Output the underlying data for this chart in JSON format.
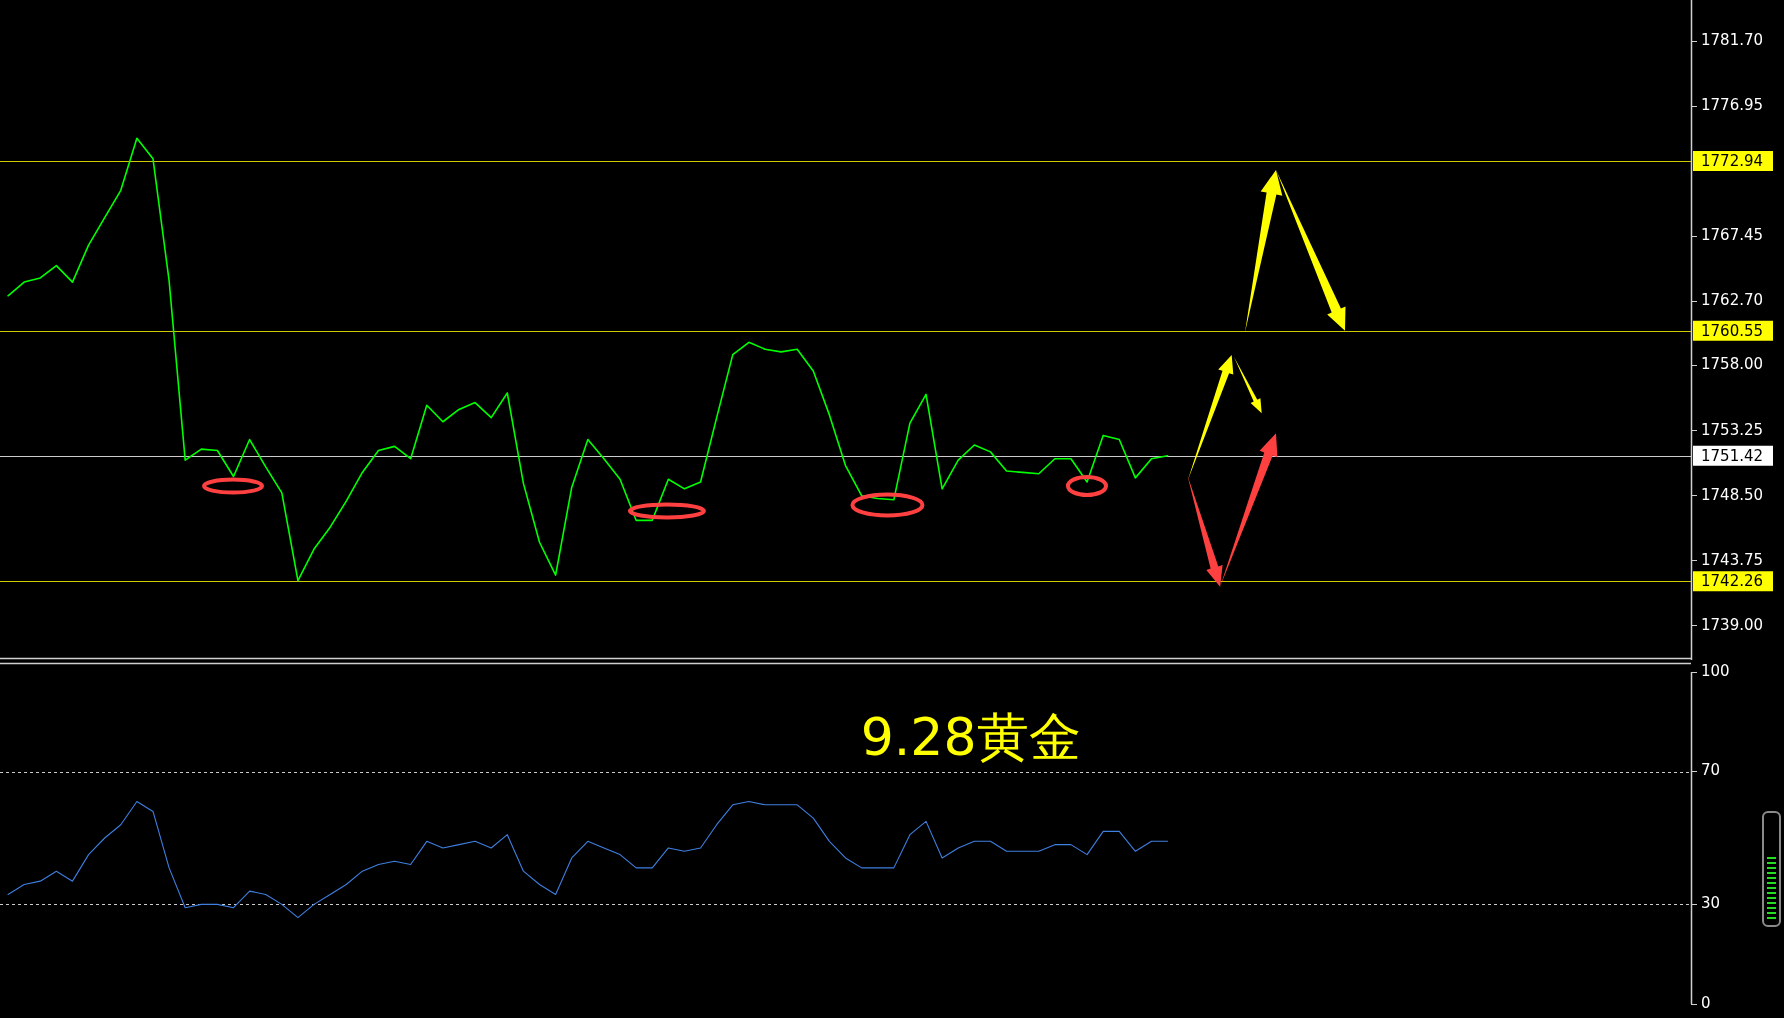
{
  "chart_data": [
    {
      "type": "line",
      "categories": [
        null,
        null,
        null,
        null,
        null,
        null,
        null,
        null,
        null,
        null,
        null,
        null,
        null,
        null,
        null,
        null,
        null,
        null,
        null,
        null,
        null,
        null,
        null,
        null,
        null,
        null,
        null,
        null,
        null,
        null,
        null,
        null,
        null,
        null,
        null,
        null,
        null,
        null,
        null,
        null,
        null,
        null,
        null,
        null,
        null,
        null,
        null,
        null,
        null,
        null,
        null,
        null,
        null,
        null,
        null,
        null,
        null,
        null,
        null,
        null,
        null,
        null,
        null,
        null,
        null,
        null,
        null,
        null,
        null,
        null,
        null,
        null,
        null,
        null,
        null,
        null,
        null,
        null,
        null,
        null,
        null,
        null,
        null,
        null,
        null,
        null,
        null,
        null,
        null,
        null,
        null,
        null,
        null,
        null,
        null,
        null,
        null,
        null,
        null,
        null,
        null,
        null,
        null,
        null,
        null
      ],
      "series": [
        {
          "color": "#00ff00",
          "values": [
            1763.1,
            1764.1,
            1764.4,
            1765.3,
            1764.1,
            1766.8,
            1768.8,
            1770.8,
            1774.6,
            1773.1,
            1764.2,
            1751.1,
            1751.9,
            1751.8,
            1749.9,
            1752.6,
            1750.6,
            1748.7,
            1742.3,
            1744.6,
            1746.2,
            1748.1,
            1750.2,
            1751.8,
            1752.1,
            1751.2,
            1755.1,
            1753.9,
            1754.8,
            1755.3,
            1754.2,
            1756.0,
            1749.4,
            1745.1,
            1742.7,
            1749.1,
            1752.6,
            1751.2,
            1749.7,
            1746.7,
            1746.7,
            1749.7,
            1749.0,
            1749.5,
            1754.2,
            1758.8,
            1759.7,
            1759.2,
            1759.0,
            1759.2,
            1757.6,
            1754.4,
            1750.7,
            1748.5,
            1748.3,
            1748.2,
            1753.8,
            1755.9,
            1749.0,
            1751.1,
            1752.2,
            1751.7,
            1750.3,
            1750.2,
            1750.1,
            1751.2,
            1751.2,
            1749.5,
            1752.9,
            1752.6,
            1749.8,
            1751.2,
            1751.42,
            null,
            null,
            null,
            null,
            null,
            null,
            null,
            null,
            null,
            null,
            null,
            null,
            null,
            null,
            null,
            null,
            null,
            null,
            null,
            null,
            null,
            null,
            null,
            null,
            null,
            null,
            null,
            null,
            null,
            null,
            null,
            null
          ]
        }
      ],
      "ylim": [
        1736.5,
        1784.7
      ],
      "yticks": [
        {
          "value": 1739,
          "label": "1739.00"
        },
        1743.75,
        {
          "value": 1748.5,
          "label": "1748.50"
        },
        1753.25,
        {
          "value": 1758,
          "label": "1758.00"
        },
        {
          "value": 1762.7,
          "label": "1762.70"
        },
        1767.45,
        1776.95,
        {
          "value": 1781.7,
          "label": "1781.70"
        }
      ],
      "ref_lines": [
        {
          "axis": "y",
          "value": 1772.94,
          "label": "1772.94",
          "color": "#ffff00"
        },
        {
          "axis": "y",
          "value": 1760.55,
          "label": "1760.55",
          "color": "#ffff00"
        },
        {
          "axis": "y",
          "value": 1751.42,
          "label": "1751.42",
          "color": "#ffffff"
        },
        {
          "axis": "y",
          "value": 1742.26,
          "label": "1742.26",
          "color": "#ffff00"
        }
      ],
      "tick_labels": "y"
    },
    {
      "type": "line",
      "categories": [
        null,
        null,
        null,
        null,
        null,
        null,
        null,
        null,
        null,
        null,
        null,
        null,
        null,
        null,
        null,
        null,
        null,
        null,
        null,
        null,
        null,
        null,
        null,
        null,
        null,
        null,
        null,
        null,
        null,
        null,
        null,
        null,
        null,
        null,
        null,
        null,
        null,
        null,
        null,
        null,
        null,
        null,
        null,
        null,
        null,
        null,
        null,
        null,
        null,
        null,
        null,
        null,
        null,
        null,
        null,
        null,
        null,
        null,
        null,
        null,
        null,
        null,
        null,
        null,
        null,
        null,
        null,
        null,
        null,
        null,
        null,
        null,
        null,
        null,
        null,
        null,
        null,
        null,
        null,
        null,
        null,
        null,
        null,
        null,
        null,
        null,
        null,
        null,
        null,
        null,
        null,
        null,
        null,
        null,
        null,
        null,
        null,
        null,
        null,
        null,
        null,
        null,
        null,
        null,
        null
      ],
      "series": [
        {
          "color": "#3f7fe0",
          "values": [
            33,
            36,
            37,
            40,
            37,
            45,
            50,
            54,
            61,
            58,
            41,
            29,
            30,
            30,
            29,
            34,
            33,
            30,
            26,
            30,
            33,
            36,
            40,
            42,
            43,
            42,
            49,
            47,
            48,
            49,
            47,
            51,
            40,
            36,
            33,
            44,
            49,
            47,
            45,
            41,
            41,
            47,
            46,
            47,
            54,
            60,
            61,
            60,
            60,
            60,
            56,
            49,
            44,
            41,
            41,
            41,
            51,
            55,
            44,
            47,
            49,
            49,
            46,
            46,
            46,
            48,
            48,
            45,
            52,
            52,
            46,
            49,
            49,
            null,
            null,
            null,
            null,
            null,
            null,
            null,
            null,
            null,
            null,
            null,
            null,
            null,
            null,
            null,
            null,
            null,
            null,
            null,
            null,
            null,
            null,
            null,
            null,
            null,
            null,
            null,
            null,
            null,
            null,
            null,
            null
          ]
        }
      ],
      "ylim": [
        0,
        100
      ],
      "yticks": [
        0,
        30,
        70,
        100
      ],
      "ref_lines": [
        {
          "axis": "y",
          "value": 70,
          "color": "#ffffff",
          "line_style": "dashed"
        },
        {
          "axis": "y",
          "value": 30,
          "color": "#ffffff",
          "line_style": "dashed"
        }
      ],
      "annotations": [
        "9.28黄金"
      ],
      "tick_labels": "y"
    }
  ]
}
